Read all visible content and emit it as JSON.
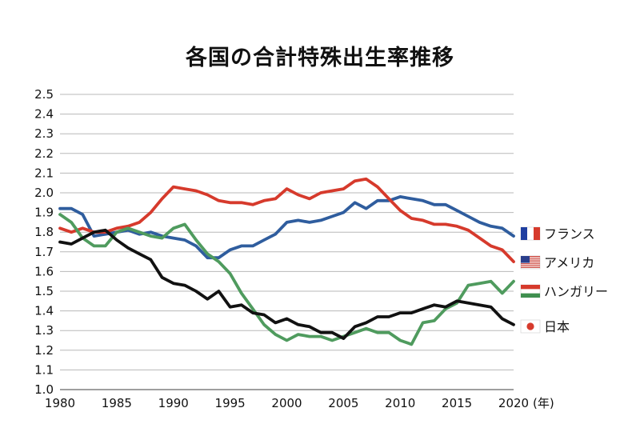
{
  "chart_data": {
    "type": "line",
    "title": "各国の合計特殊出生率推移",
    "xlabel": "",
    "ylabel": "",
    "x_unit_label": "(年)",
    "x_ticks": [
      "1980",
      "1985",
      "1990",
      "1995",
      "2000",
      "2005",
      "2010",
      "2015",
      "2020"
    ],
    "y_ticks": [
      "1.0",
      "1.1",
      "1.2",
      "1.3",
      "1.4",
      "1.5",
      "1.6",
      "1.7",
      "1.8",
      "1.9",
      "2.0",
      "2.1",
      "2.2",
      "2.3",
      "2.4",
      "2.5"
    ],
    "xlim": [
      1980,
      2020
    ],
    "ylim": [
      1.0,
      2.5
    ],
    "grid": true,
    "legend_position": "right",
    "x": [
      1980,
      1981,
      1982,
      1983,
      1984,
      1985,
      1986,
      1987,
      1988,
      1989,
      1990,
      1991,
      1992,
      1993,
      1994,
      1995,
      1996,
      1997,
      1998,
      1999,
      2000,
      2001,
      2002,
      2003,
      2004,
      2005,
      2006,
      2007,
      2008,
      2009,
      2010,
      2011,
      2012,
      2013,
      2014,
      2015,
      2016,
      2017,
      2018,
      2019,
      2020
    ],
    "series": [
      {
        "name": "フランス",
        "flag": "france-flag-icon",
        "color": "#2f5d9e",
        "values": [
          1.92,
          1.92,
          1.89,
          1.78,
          1.79,
          1.8,
          1.81,
          1.79,
          1.8,
          1.78,
          1.77,
          1.76,
          1.73,
          1.67,
          1.67,
          1.71,
          1.73,
          1.73,
          1.76,
          1.79,
          1.85,
          1.86,
          1.85,
          1.86,
          1.88,
          1.9,
          1.95,
          1.92,
          1.96,
          1.96,
          1.98,
          1.97,
          1.96,
          1.94,
          1.94,
          1.91,
          1.88,
          1.85,
          1.83,
          1.82,
          1.78
        ]
      },
      {
        "name": "アメリカ",
        "flag": "usa-flag-icon",
        "color": "#d63a2c",
        "values": [
          1.82,
          1.8,
          1.82,
          1.8,
          1.8,
          1.82,
          1.83,
          1.85,
          1.9,
          1.97,
          2.03,
          2.02,
          2.01,
          1.99,
          1.96,
          1.95,
          1.95,
          1.94,
          1.96,
          1.97,
          2.02,
          1.99,
          1.97,
          2.0,
          2.01,
          2.02,
          2.06,
          2.07,
          2.03,
          1.97,
          1.91,
          1.87,
          1.86,
          1.84,
          1.84,
          1.83,
          1.81,
          1.77,
          1.73,
          1.71,
          1.65
        ]
      },
      {
        "name": "ハンガリー",
        "flag": "hungary-flag-icon",
        "color": "#4f9b5e",
        "values": [
          1.89,
          1.85,
          1.77,
          1.73,
          1.73,
          1.8,
          1.82,
          1.8,
          1.78,
          1.77,
          1.82,
          1.84,
          1.76,
          1.69,
          1.65,
          1.59,
          1.49,
          1.41,
          1.33,
          1.28,
          1.25,
          1.28,
          1.27,
          1.27,
          1.25,
          1.27,
          1.29,
          1.31,
          1.29,
          1.29,
          1.25,
          1.23,
          1.34,
          1.35,
          1.41,
          1.44,
          1.53,
          1.54,
          1.55,
          1.49,
          1.55
        ]
      },
      {
        "name": "日本",
        "flag": "japan-flag-icon",
        "color": "#111111",
        "values": [
          1.75,
          1.74,
          1.77,
          1.8,
          1.81,
          1.76,
          1.72,
          1.69,
          1.66,
          1.57,
          1.54,
          1.53,
          1.5,
          1.46,
          1.5,
          1.42,
          1.43,
          1.39,
          1.38,
          1.34,
          1.36,
          1.33,
          1.32,
          1.29,
          1.29,
          1.26,
          1.32,
          1.34,
          1.37,
          1.37,
          1.39,
          1.39,
          1.41,
          1.43,
          1.42,
          1.45,
          1.44,
          1.43,
          1.42,
          1.36,
          1.33
        ]
      }
    ]
  }
}
